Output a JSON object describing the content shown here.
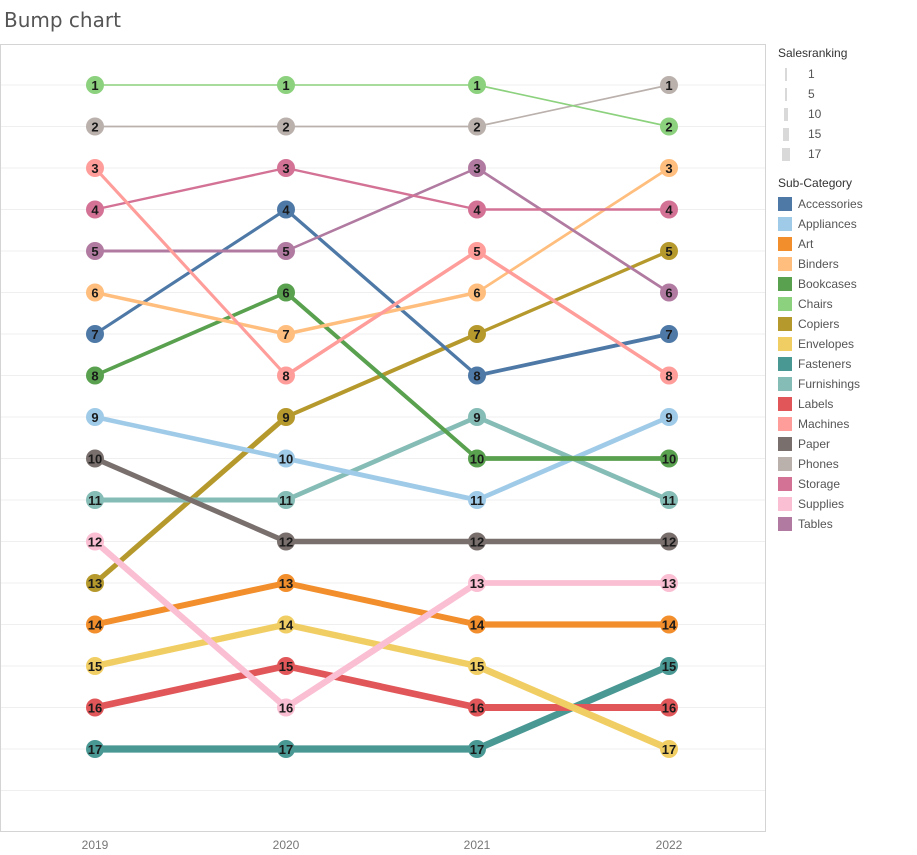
{
  "title": "Bump chart",
  "chart_data": {
    "type": "line",
    "chart_subtype": "bump",
    "x": [
      "2019",
      "2020",
      "2021",
      "2022"
    ],
    "ylim": [
      19,
      0
    ],
    "y_reversed": true,
    "grid": true,
    "series": [
      {
        "name": "Accessories",
        "color": "#4e79a7",
        "values": [
          7,
          4,
          8,
          7
        ]
      },
      {
        "name": "Appliances",
        "color": "#a0cbe8",
        "values": [
          9,
          10,
          11,
          9
        ]
      },
      {
        "name": "Art",
        "color": "#f28e2b",
        "values": [
          14,
          13,
          14,
          14
        ]
      },
      {
        "name": "Binders",
        "color": "#ffbe7d",
        "values": [
          6,
          7,
          6,
          3
        ]
      },
      {
        "name": "Bookcases",
        "color": "#59a14f",
        "values": [
          8,
          6,
          10,
          10
        ]
      },
      {
        "name": "Chairs",
        "color": "#8cd17d",
        "values": [
          1,
          1,
          1,
          2
        ]
      },
      {
        "name": "Copiers",
        "color": "#b6992d",
        "values": [
          13,
          9,
          7,
          5
        ]
      },
      {
        "name": "Envelopes",
        "color": "#f1ce63",
        "values": [
          15,
          14,
          15,
          17
        ]
      },
      {
        "name": "Fasteners",
        "color": "#499894",
        "values": [
          17,
          17,
          17,
          15
        ]
      },
      {
        "name": "Furnishings",
        "color": "#86bcb6",
        "values": [
          11,
          11,
          9,
          11
        ]
      },
      {
        "name": "Labels",
        "color": "#e15759",
        "values": [
          16,
          15,
          16,
          16
        ]
      },
      {
        "name": "Machines",
        "color": "#ff9d9a",
        "values": [
          3,
          8,
          5,
          8
        ]
      },
      {
        "name": "Paper",
        "color": "#79706e",
        "values": [
          10,
          12,
          12,
          12
        ]
      },
      {
        "name": "Phones",
        "color": "#bab0ac",
        "values": [
          2,
          2,
          2,
          1
        ]
      },
      {
        "name": "Storage",
        "color": "#d37295",
        "values": [
          4,
          3,
          4,
          4
        ]
      },
      {
        "name": "Supplies",
        "color": "#fabfd2",
        "values": [
          12,
          16,
          13,
          13
        ]
      },
      {
        "name": "Tables",
        "color": "#b07aa1",
        "values": [
          5,
          5,
          3,
          6
        ]
      }
    ]
  },
  "legend": {
    "size_title": "Salesranking",
    "size_items": [
      "1",
      "5",
      "10",
      "15",
      "17"
    ],
    "color_title": "Sub-Category",
    "placement": "right"
  }
}
